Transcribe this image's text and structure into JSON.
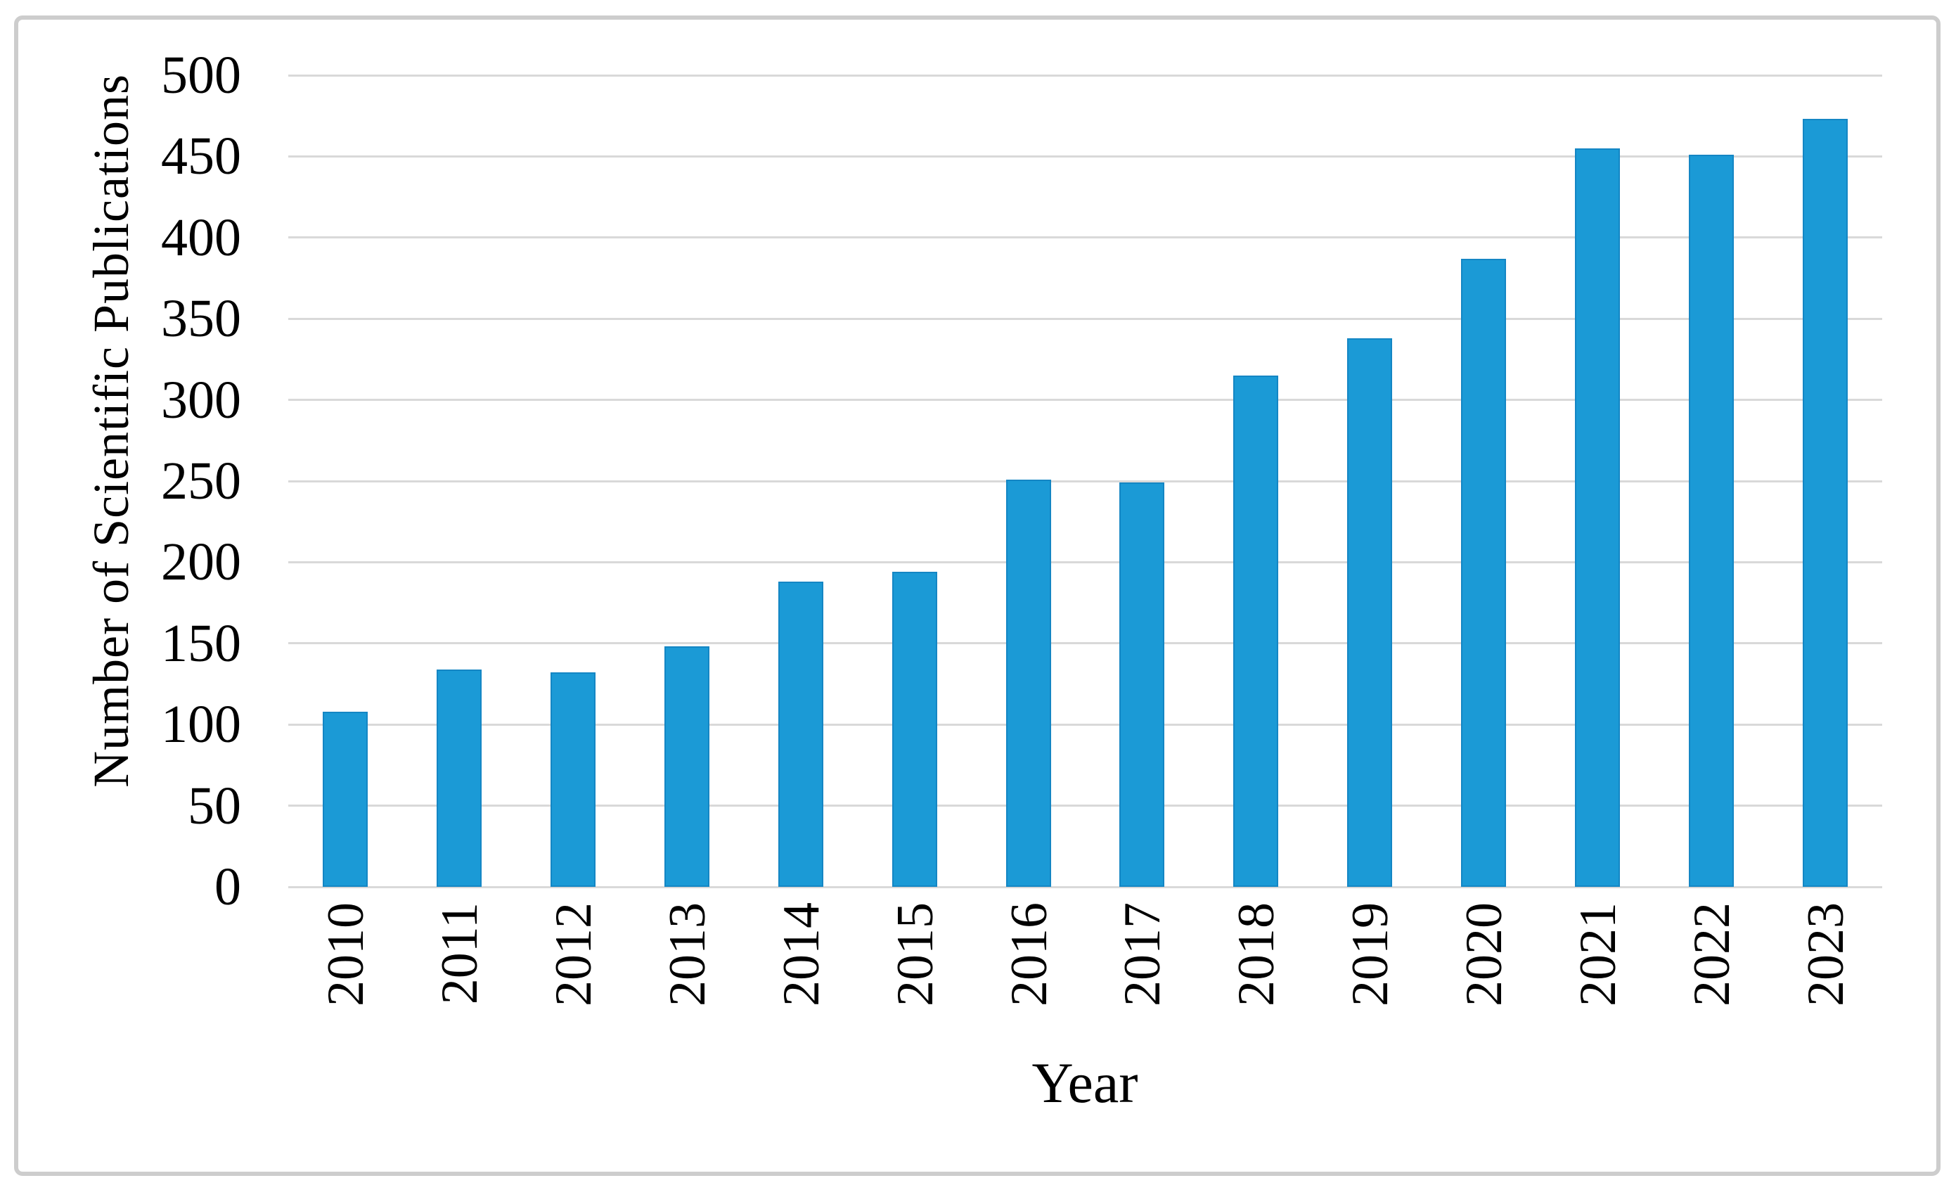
{
  "figure": {
    "background": "#ffffff",
    "border_color": "#cdcdcd"
  },
  "chart_data": {
    "type": "bar",
    "title": "",
    "categories": [
      "2010",
      "2011",
      "2012",
      "2013",
      "2014",
      "2015",
      "2016",
      "2017",
      "2018",
      "2019",
      "2020",
      "2021",
      "2022",
      "2023"
    ],
    "values": [
      108,
      134,
      132,
      148,
      188,
      194,
      251,
      249,
      315,
      338,
      387,
      455,
      451,
      473
    ],
    "xlabel": "Year",
    "ylabel": "Number of Scientific Publications",
    "yticks": [
      0,
      50,
      100,
      150,
      200,
      250,
      300,
      350,
      400,
      450,
      500
    ],
    "ylim": [
      0,
      500
    ],
    "grid": true,
    "legend_position": "none",
    "bar_color": "#1b9ad6",
    "bar_border_color": "#1486c4",
    "gridline_color": "#d9d9d9",
    "axis_text_color": "#000000"
  }
}
